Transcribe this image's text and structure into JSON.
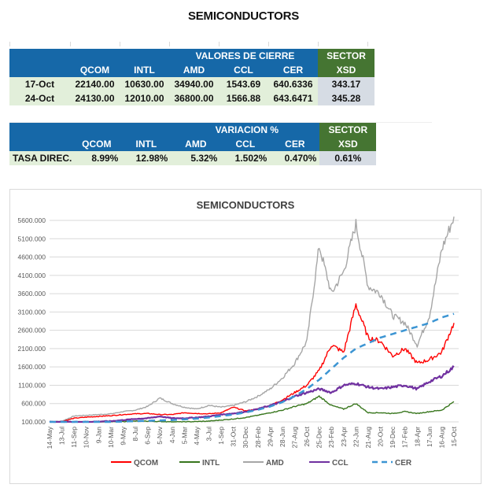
{
  "page_title": "SEMICONDUCTORS",
  "closing_table": {
    "group_header": "VALORES DE CIERRE",
    "sector_header_1": "SECTOR",
    "sector_header_2": "XSD",
    "columns": [
      "QCOM",
      "INTL",
      "AMD",
      "CCL",
      "CER"
    ],
    "rows": [
      {
        "label": "17-Oct",
        "values": [
          "22140.00",
          "10630.00",
          "34940.00",
          "1543.69",
          "640.6336"
        ],
        "sector": "343.17"
      },
      {
        "label": "24-Oct",
        "values": [
          "24130.00",
          "12010.00",
          "36800.00",
          "1566.88",
          "643.6471"
        ],
        "sector": "345.28"
      }
    ]
  },
  "variation_table": {
    "group_header": "VARIACION %",
    "sector_header_1": "SECTOR",
    "sector_header_2": "XSD",
    "columns": [
      "QCOM",
      "INTL",
      "AMD",
      "CCL",
      "CER"
    ],
    "row": {
      "label": "TASA DIREC.",
      "values": [
        "8.99%",
        "12.98%",
        "5.32%",
        "1.502%",
        "0.470%"
      ],
      "sector": "0.61%"
    }
  },
  "colors": {
    "header_blue": "#1668a8",
    "sector_green": "#457532",
    "row_green": "#e2efda",
    "sector_gray": "#d6dce4"
  },
  "chart_data": {
    "type": "line",
    "title": "SEMICONDUCTORS",
    "xlabel": "",
    "ylabel": "",
    "ylim": [
      100,
      5600
    ],
    "yticks": [
      "100.000",
      "600.000",
      "1100.000",
      "1600.000",
      "2100.000",
      "2600.000",
      "3100.000",
      "3600.000",
      "4100.000",
      "4600.000",
      "5100.000",
      "5600.000"
    ],
    "grid": true,
    "legend": "bottom",
    "categories": [
      "14-May",
      "13-Jul",
      "11-Sep",
      "10-Nov",
      "9-Jan",
      "10-Mar",
      "9-May",
      "8-Jul",
      "6-Sep",
      "5-Nov",
      "4-Jan",
      "5-Mar",
      "4-May",
      "3-Jul",
      "1-Sep",
      "31-Oct",
      "30-Dec",
      "28-Feb",
      "29-Apr",
      "28-Jun",
      "27-Aug",
      "26-Oct",
      "25-Dec",
      "23-Feb",
      "23-Apr",
      "22-Jun",
      "21-Aug",
      "20-Oct",
      "19-Dec",
      "17-Feb",
      "18-Apr",
      "17-Jun",
      "16-Aug",
      "15-Oct"
    ],
    "series": [
      {
        "name": "QCOM",
        "color": "#ff0000",
        "dash": false,
        "values": [
          100,
          110,
          200,
          230,
          250,
          270,
          300,
          320,
          330,
          300,
          300,
          350,
          330,
          320,
          350,
          500,
          400,
          450,
          550,
          700,
          900,
          1100,
          1500,
          2200,
          2000,
          3300,
          2400,
          2300,
          1900,
          2100,
          1700,
          1800,
          2000,
          2800
        ]
      },
      {
        "name": "INTL",
        "color": "#38761d",
        "dash": false,
        "values": [
          100,
          100,
          100,
          100,
          100,
          100,
          110,
          120,
          120,
          110,
          100,
          100,
          110,
          120,
          150,
          180,
          220,
          280,
          350,
          420,
          520,
          600,
          800,
          550,
          450,
          600,
          350,
          350,
          330,
          380,
          330,
          380,
          420,
          650
        ]
      },
      {
        "name": "AMD",
        "color": "#a6a6a6",
        "dash": false,
        "values": [
          100,
          120,
          260,
          280,
          300,
          320,
          380,
          420,
          520,
          750,
          600,
          500,
          450,
          550,
          500,
          550,
          650,
          800,
          1000,
          1300,
          1700,
          2300,
          4900,
          3600,
          4200,
          5500,
          3800,
          3600,
          3000,
          2800,
          2200,
          3000,
          4800,
          5700
        ]
      },
      {
        "name": "CCL",
        "color": "#7030a0",
        "dash": false,
        "values": [
          100,
          100,
          100,
          100,
          110,
          120,
          150,
          180,
          200,
          250,
          200,
          200,
          220,
          250,
          300,
          330,
          380,
          450,
          550,
          650,
          800,
          900,
          1000,
          900,
          1100,
          1150,
          1050,
          1000,
          1050,
          1100,
          1000,
          1200,
          1350,
          1600
        ]
      },
      {
        "name": "CER",
        "color": "#3c95d3",
        "dash": true,
        "values": [
          100,
          100,
          100,
          100,
          100,
          100,
          110,
          120,
          130,
          140,
          150,
          170,
          190,
          220,
          260,
          300,
          360,
          430,
          520,
          640,
          800,
          1000,
          1250,
          1550,
          1850,
          2100,
          2250,
          2400,
          2500,
          2600,
          2700,
          2800,
          2950,
          3050
        ]
      }
    ]
  }
}
